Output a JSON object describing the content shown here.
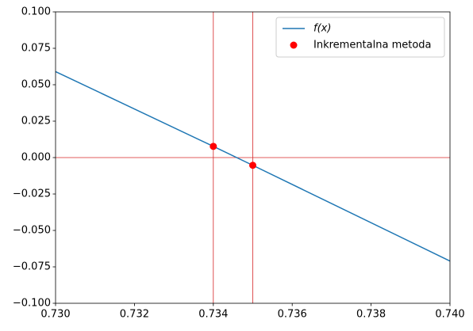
{
  "chart_data": {
    "type": "line",
    "series": [
      {
        "name": "f(x)",
        "kind": "line",
        "color": "#1f77b4",
        "x": [
          0.73,
          0.734,
          0.735,
          0.74
        ],
        "values": [
          0.059,
          0.0077,
          -0.0053,
          -0.071
        ]
      },
      {
        "name": "Inkrementalna metoda",
        "kind": "points",
        "color": "#ff0000",
        "x": [
          0.734,
          0.735
        ],
        "values": [
          0.0077,
          -0.0053
        ]
      }
    ],
    "reference_lines": {
      "x": [
        0.734,
        0.735
      ],
      "y": [
        0
      ],
      "color": "#d62728"
    },
    "xlim": [
      0.73,
      0.74
    ],
    "xticks": [
      {
        "value": 0.73,
        "label": "0.730"
      },
      {
        "value": 0.732,
        "label": "0.732"
      },
      {
        "value": 0.734,
        "label": "0.734"
      },
      {
        "value": 0.736,
        "label": "0.736"
      },
      {
        "value": 0.738,
        "label": "0.738"
      },
      {
        "value": 0.74,
        "label": "0.740"
      }
    ],
    "ylim": [
      -0.1,
      0.1
    ],
    "yticks": [
      {
        "value": -0.1,
        "label": "−0.100"
      },
      {
        "value": -0.075,
        "label": "−0.075"
      },
      {
        "value": -0.05,
        "label": "−0.050"
      },
      {
        "value": -0.025,
        "label": "−0.025"
      },
      {
        "value": 0,
        "label": "0.000"
      },
      {
        "value": 0.025,
        "label": "0.025"
      },
      {
        "value": 0.05,
        "label": "0.050"
      },
      {
        "value": 0.075,
        "label": "0.075"
      },
      {
        "value": 0.1,
        "label": "0.100"
      }
    ],
    "legend": "upper right"
  }
}
